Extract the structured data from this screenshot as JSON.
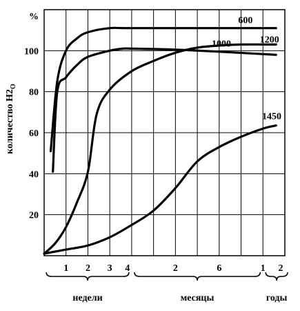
{
  "chart_data": {
    "type": "line",
    "title": "",
    "ylabel": "количество H2O",
    "y_unit": "%",
    "ylim": [
      0,
      120
    ],
    "y_ticks": [
      20,
      40,
      60,
      80,
      100
    ],
    "x_tick_labels": [
      "1",
      "2",
      "3",
      "4",
      "2",
      "6",
      "1",
      "2"
    ],
    "x_groups": [
      "недели",
      "месяцы",
      "годы"
    ],
    "grid": true,
    "series": [
      {
        "name": "600",
        "x": [
          0.3,
          0.6,
          1.0,
          1.5,
          2.0,
          3.0,
          4.0,
          9.0,
          10.6
        ],
        "y": [
          51,
          85,
          100,
          106,
          109,
          111,
          111,
          111,
          111
        ]
      },
      {
        "name": "1000",
        "x": [
          0.4,
          0.6,
          1.0,
          1.5,
          2.0,
          3.0,
          3.6,
          4.0,
          6.0,
          8.0,
          10.6
        ],
        "y": [
          41,
          80,
          87,
          93,
          97,
          100,
          101,
          101,
          100.5,
          99.5,
          98
        ]
      },
      {
        "name": "1200",
        "x": [
          0.0,
          0.5,
          1.0,
          1.5,
          2.0,
          2.4,
          3.0,
          4.0,
          5.0,
          6.0,
          7.0,
          8.0,
          9.0,
          10.6
        ],
        "y": [
          1,
          6,
          14,
          26,
          41,
          69,
          81,
          90,
          95,
          99,
          101.5,
          102.5,
          103,
          103
        ]
      },
      {
        "name": "1450",
        "x": [
          0.0,
          1.0,
          2.0,
          3.0,
          4.0,
          5.0,
          6.0,
          7.0,
          8.0,
          9.0,
          10.0,
          10.6
        ],
        "y": [
          1,
          3,
          5,
          9,
          15,
          22,
          33,
          46,
          53,
          58,
          62,
          63.5
        ]
      }
    ]
  }
}
